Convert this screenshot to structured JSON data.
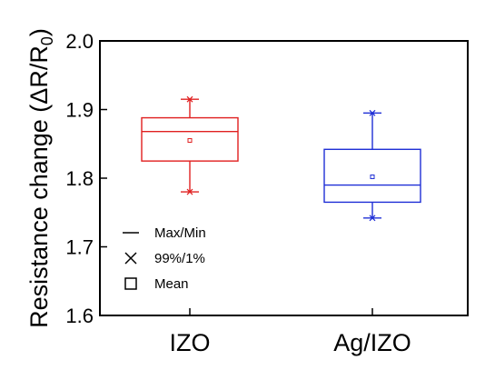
{
  "chart_data": {
    "type": "box",
    "ylabel": {
      "prefix": "Resistance change (ΔR/R",
      "sub": "0",
      "suffix": ")"
    },
    "ylim": [
      1.6,
      2.0
    ],
    "yticks": [
      "1.6",
      "1.7",
      "1.8",
      "1.9",
      "2.0"
    ],
    "categories": [
      "IZO",
      "Ag/IZO"
    ],
    "series": [
      {
        "category": "IZO",
        "color": "#e02020",
        "min": 1.78,
        "q1": 1.825,
        "median": 1.868,
        "q3": 1.888,
        "max": 1.915,
        "p1": 1.78,
        "p99": 1.915,
        "mean": 1.855
      },
      {
        "category": "Ag/IZO",
        "color": "#1f2fd6",
        "min": 1.742,
        "q1": 1.765,
        "median": 1.79,
        "q3": 1.842,
        "max": 1.895,
        "p1": 1.742,
        "p99": 1.895,
        "mean": 1.802
      }
    ],
    "legend": {
      "placement": "bottom-left",
      "items": [
        {
          "symbol": "line",
          "label": "Max/Min"
        },
        {
          "symbol": "x-mark",
          "label": "99%/1%"
        },
        {
          "symbol": "square",
          "label": "Mean"
        }
      ]
    },
    "grid": false
  }
}
